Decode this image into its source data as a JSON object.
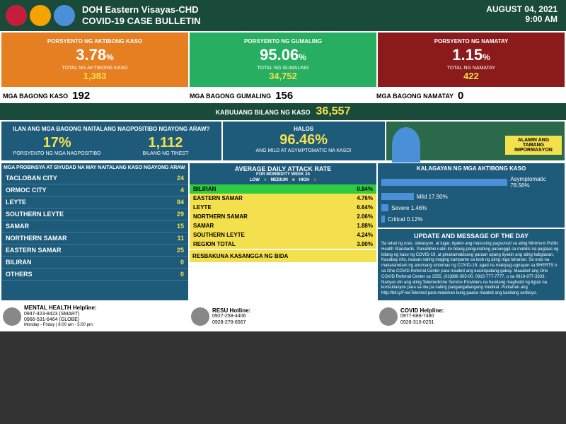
{
  "header": {
    "title_line1": "DOH Eastern Visayas-CHD",
    "title_line2": "COVID-19 CASE BULLETIN",
    "date": "AUGUST 04, 2021",
    "time": "9:00 AM"
  },
  "top_stats": {
    "active": {
      "label": "PORSYENTO NG AKTIBONG KASO",
      "pct": "3.78",
      "sublabel": "TOTAL NG AKTIBONG KASO",
      "num": "1,383",
      "bg": "#e67e22"
    },
    "recovered": {
      "label": "PORSYENTO NG GUMALING",
      "pct": "95.06",
      "sublabel": "TOTAL NG GUMALING",
      "num": "34,752",
      "bg": "#27ae60"
    },
    "died": {
      "label": "PORSYENTO NG NAMATAY",
      "pct": "1.15",
      "sublabel": "TOTAL NG NAMATAY",
      "num": "422",
      "bg": "#8b1a1a"
    }
  },
  "new_stats": {
    "cases": {
      "label": "MGA BAGONG KASO",
      "num": "192"
    },
    "recovered": {
      "label": "MGA BAGONG GUMALING",
      "num": "156"
    },
    "died": {
      "label": "MGA BAGONG NAMATAY",
      "num": "0"
    }
  },
  "total": {
    "label": "KABUUANG BILANG NG KASO",
    "num": "36,557"
  },
  "mid": {
    "left_title": "ILAN ANG MGA BAGONG NAITALANG NAGPOSITIBO NGAYONG ARAW?",
    "pct": {
      "num": "17%",
      "label": "PORSYENTO NG MGA NAGPOSITIBO"
    },
    "tested": {
      "num": "1,112",
      "label": "BILANG NG TINEST"
    },
    "halos_label": "HALOS",
    "halos_pct": "96.46%",
    "halos_sub": "ANG MILD AT ASYMPTOMATIC NA KASO!",
    "bida": "ALAMIN ANG TAMANG IMPORMASYON"
  },
  "provinces": {
    "title": "MGA PROBINSYA AT SIYUDAD NA MAY NAITALANG KASO NGAYONG ARAW",
    "rows": [
      {
        "name": "TACLOBAN CITY",
        "num": "24"
      },
      {
        "name": "ORMOC CITY",
        "num": "4"
      },
      {
        "name": "LEYTE",
        "num": "84"
      },
      {
        "name": "SOUTHERN LEYTE",
        "num": "29"
      },
      {
        "name": "SAMAR",
        "num": "15"
      },
      {
        "name": "NORTHERN SAMAR",
        "num": "11"
      },
      {
        "name": "EASTERN SAMAR",
        "num": "25"
      },
      {
        "name": "BILIRAN",
        "num": "0"
      },
      {
        "name": "OTHERS",
        "num": "0"
      }
    ]
  },
  "adar": {
    "title": "AVERAGE DAILY ATTACK RATE",
    "subtitle": "FOR MORBIDITY WEEK 24",
    "legend": {
      "low": "LOW",
      "med": "MEDIUM",
      "high": "HIGH"
    },
    "rows": [
      {
        "name": "BILIRAN",
        "pct": "0.84%",
        "bg": "#2ecc40"
      },
      {
        "name": "EASTERN SAMAR",
        "pct": "4.76%",
        "bg": "#f4e04d"
      },
      {
        "name": "LEYTE",
        "pct": "6.64%",
        "bg": "#f4e04d"
      },
      {
        "name": "NORTHERN SAMAR",
        "pct": "2.06%",
        "bg": "#f4e04d"
      },
      {
        "name": "SAMAR",
        "pct": "1.88%",
        "bg": "#f4e04d"
      },
      {
        "name": "SOUTHERN LEYTE",
        "pct": "4.24%",
        "bg": "#f4e04d"
      },
      {
        "name": "REGION TOTAL",
        "pct": "3.90%",
        "bg": "#f4e04d"
      }
    ],
    "resbakuna": "RESBAKUNA KASANGGA NG BIDA"
  },
  "status": {
    "title": "KALAGAYAN NG MGA AKTIBONG KASO",
    "rows": [
      {
        "name": "Asymptomatic",
        "pct": "78.56%",
        "width": 78
      },
      {
        "name": "Mild",
        "pct": "17.90%",
        "width": 18
      },
      {
        "name": "Severe",
        "pct": "1.46%",
        "width": 4
      },
      {
        "name": "Critical",
        "pct": "0.12%",
        "width": 2
      }
    ]
  },
  "update": {
    "title": "UPDATE AND MESSAGE OF THE DAY",
    "text": "Sa lahat ng oras, sitwasyon, at lugar, tiyakin ang masusing pagsunod sa ating Minimum Public Health Standards. Panatilihin natin ito bilang pangunahing pananggä sa mabilis na pagtaas ng bilang ng kaso ng COVID-19, at pinakamabisang paraan upang tiyakin ang ating kaligtasan. Kasabay nito, iwasan nating maging kampante sa loob ng ating mga tahanan. Sa oras na makaramdam ng anumang sintomas ng COVID-19, agad na makipag-ugnayan sa BHERTS o sa One COVID Referral Center para maabot ang karampatang gabay. Maaabot ang One COVID Referral Center sa 1555, (02)886-505-00, 0915-777-7777, o sa 0919-977-3333. Nariyan din ang ating Telemedicine Service Providers na handang maghatid ng ligtas na konsultasyon para sa iba pa nating pangangailangang medikal. Puntahan ang http://bit.ly/FreeTelemed para malaman kung paano maabot ang kanilang serbisyo."
  },
  "footer": {
    "mental": {
      "title": "MENTAL HEALTH Helpline:",
      "l1": "0947-423-8423 (SMART)",
      "l2": "0966-531-6464 (GLOBE)",
      "l3": "Monday - Friday | 8:00 am - 5:00 pm"
    },
    "resu": {
      "title": "RESU Hotline:",
      "l1": "0927-258-4406",
      "l2": "0928-278-6567"
    },
    "covid": {
      "title": "COVID Helpline:",
      "l1": "0977-688-7480",
      "l2": "0928-316-0251"
    }
  }
}
